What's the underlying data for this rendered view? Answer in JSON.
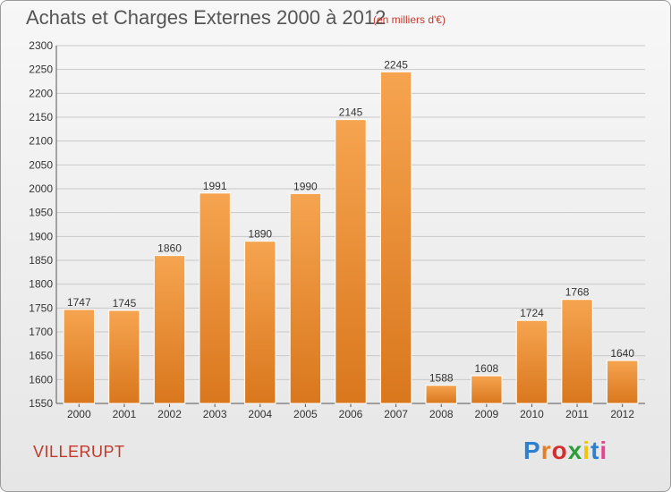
{
  "header": {
    "title": "Achats et Charges Externes 2000 à 2012",
    "subtitle": "(en milliers d'€)"
  },
  "footer": {
    "place": "VILLERUPT",
    "logo": {
      "text": "Proxiti",
      "letter_colors": [
        "#2e7fd0",
        "#e67e22",
        "#d32f2f",
        "#2e9e3a",
        "#f1c40f",
        "#2e7fd0",
        "#e84393"
      ]
    }
  },
  "colors": {
    "bar_light": "#f6a450",
    "bar_dark": "#d9771d",
    "accent_red": "#c0392b",
    "grid": "#c8c8c8"
  },
  "chart_data": {
    "type": "bar",
    "title": "Achats et Charges Externes 2000 à 2012",
    "subtitle": "(en milliers d'€)",
    "categories": [
      "2000",
      "2001",
      "2002",
      "2003",
      "2004",
      "2005",
      "2006",
      "2007",
      "2008",
      "2009",
      "2010",
      "2011",
      "2012"
    ],
    "values": [
      1747,
      1745,
      1860,
      1991,
      1890,
      1990,
      2145,
      2245,
      1588,
      1608,
      1724,
      1768,
      1640
    ],
    "ylim": [
      1550,
      2300
    ],
    "yticks": [
      1550,
      1600,
      1650,
      1700,
      1750,
      1800,
      1850,
      1900,
      1950,
      2000,
      2050,
      2100,
      2150,
      2200,
      2250,
      2300
    ],
    "grid": true,
    "data_labels": true
  }
}
